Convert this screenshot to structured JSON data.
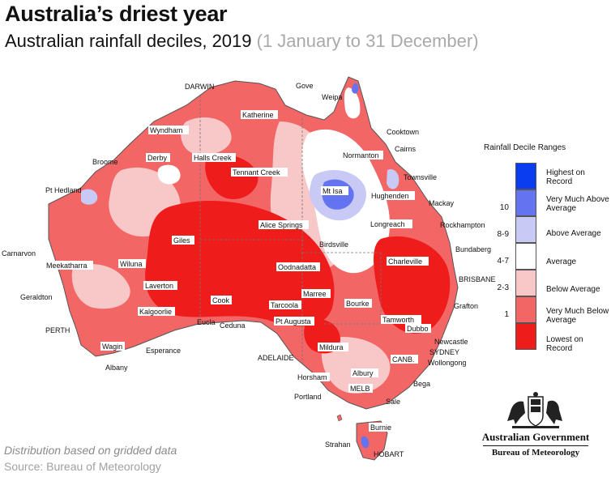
{
  "title": "Australia’s driest year",
  "subtitle_main": "Australian rainfall deciles, 2019 ",
  "subtitle_range": "(1 January to 31 December)",
  "legend": {
    "title": "Rainfall Decile Ranges",
    "items": [
      {
        "label": "Highest on Record",
        "color": "#0b3df0"
      },
      {
        "label": "Very Much Above Average",
        "color": "#6474f0"
      },
      {
        "label": "Above Average",
        "color": "#c8caf5"
      },
      {
        "label": "Average",
        "color": "#ffffff"
      },
      {
        "label": "Below Average",
        "color": "#f8c8c8"
      },
      {
        "label": "Very Much Below Average",
        "color": "#f26666"
      },
      {
        "label": "Lowest on Record",
        "color": "#ef1c1c"
      }
    ],
    "deciles": [
      "10",
      "8-9",
      "4-7",
      "2-3",
      "1"
    ]
  },
  "cities": {
    "darwin": "DARWIN",
    "gove": "Gove",
    "weipa": "Weipa",
    "katherine": "Katherine",
    "cooktown": "Cooktown",
    "wyndham": "Wyndham",
    "cairns": "Cairns",
    "normanton": "Normanton",
    "broome": "Broome",
    "derby": "Derby",
    "halls_creek": "Halls Creek",
    "townsville": "Townsville",
    "tennant_creek": "Tennant Creek",
    "pt_hedland": "Pt Hedland",
    "mt_isa": "Mt Isa",
    "hughenden": "Hughenden",
    "mackay": "Mackay",
    "rockhampton": "Rockhampton",
    "longreach": "Longreach",
    "alice_springs": "Alice Springs",
    "giles": "Giles",
    "birdsville": "Birdsville",
    "bundaberg": "Bundaberg",
    "carnarvon": "Carnarvon",
    "charleville": "Charleville",
    "meekatharra": "Meekatharra",
    "wiluna": "Wiluna",
    "oodnadatta": "Oodnadatta",
    "brisbane": "BRISBANE",
    "laverton": "Laverton",
    "geraldton": "Geraldton",
    "marree": "Marree",
    "grafton": "Grafton",
    "cook": "Cook",
    "tarcoola": "Tarcoola",
    "bourke": "Bourke",
    "kalgoorlie": "Kalgoorlie",
    "perth": "PERTH",
    "eucla": "Eucla",
    "ceduna": "Ceduna",
    "pt_augusta": "Pt Augusta",
    "tamworth": "Tamworth",
    "dubbo": "Dubbo",
    "newcastle": "Newcastle",
    "sydney": "SYDNEY",
    "wagin": "Wagin",
    "esperance": "Esperance",
    "mildura": "Mildura",
    "wollongong": "Wollongong",
    "albany": "Albany",
    "adelaide": "ADELAIDE",
    "canb": "CANB.",
    "horsham": "Horsham",
    "albury": "Albury",
    "bega": "Bega",
    "melb": "MELB",
    "portland": "Portland",
    "sale": "Sale",
    "burnie": "Burnie",
    "strahan": "Strahan",
    "hobart": "HOBART"
  },
  "footnote": "Distribution based on gridded data",
  "source": "Source: Bureau of Meteorology",
  "gov": {
    "name": "Australian Government",
    "bureau": "Bureau of Meteorology"
  }
}
